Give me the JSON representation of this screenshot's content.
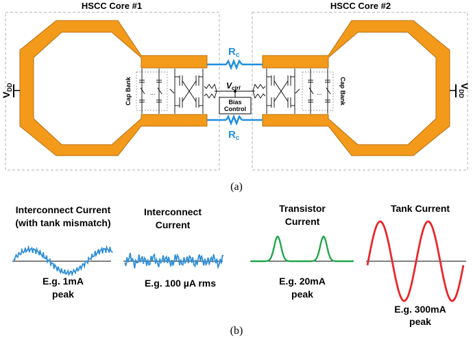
{
  "part_a": {
    "caption": "(a)",
    "core1_title": "HSCC Core #1",
    "core2_title": "HSCC Core #2",
    "vdd_left": {
      "main": "V",
      "sub": "DD"
    },
    "vdd_right": {
      "main": "V",
      "sub": "DD"
    },
    "rc_top": {
      "main": "R",
      "sub": "c"
    },
    "rc_bottom": {
      "main": "R",
      "sub": "c"
    },
    "vctrl": {
      "main": "V",
      "sub": "ctrl"
    },
    "bias_control": [
      "Bias",
      "Control"
    ],
    "cap_bank_left": "Cap Bank",
    "cap_bank_right": "Cap Bank",
    "dots": "..."
  },
  "part_b": {
    "caption": "(b)",
    "waveforms": [
      {
        "title": [
          "Interconnect Current",
          "(with tank mismatch)"
        ],
        "note": [
          "E.g. 1mA",
          "peak"
        ],
        "color": "#2f8fd8"
      },
      {
        "title": [
          "Interconnect",
          "Current"
        ],
        "note": [
          "E.g. 100 µA rms"
        ],
        "color": "#2f8fd8"
      },
      {
        "title": [
          "Transistor",
          "Current"
        ],
        "note": [
          "E.g. 20mA",
          "peak"
        ],
        "color": "#1fa64a"
      },
      {
        "title": [
          "Tank Current"
        ],
        "note": [
          "E.g. 300mA",
          "peak"
        ],
        "color": "#e8262a"
      }
    ]
  },
  "colors": {
    "inductor": "#f39a1b",
    "inductor_edge": "#b86d0c",
    "resistor": "#1f8ee0",
    "frame": "#b0b0b0"
  }
}
